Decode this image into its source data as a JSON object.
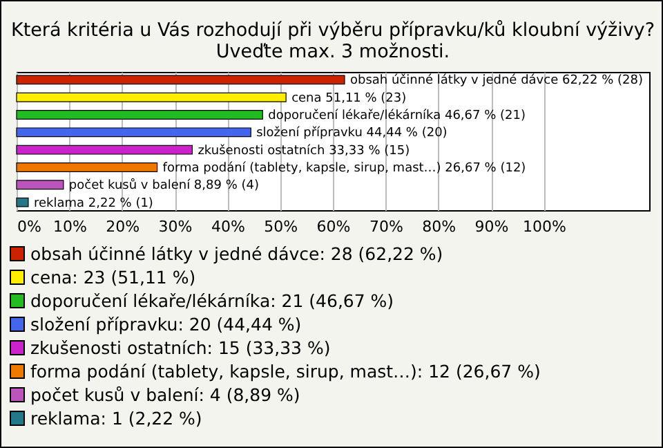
{
  "chart_data": {
    "type": "bar",
    "orientation": "horizontal",
    "title": "Která kritéria u Vás rozhodují při výběru přípravku/ků kloubní výživy?",
    "subtitle": "Uveďte max. 3 možnosti.",
    "categories": [
      null,
      null,
      null,
      null,
      null,
      null,
      null,
      null
    ],
    "values": [
      62.22,
      51.11,
      46.67,
      44.44,
      33.33,
      26.67,
      8.89,
      2.22
    ],
    "colors": [
      "#cc2200",
      "#ffee00",
      "#22bb22",
      "#4466ee",
      "#cc22cc",
      "#ee7700",
      "#bb55bb",
      "#227788"
    ],
    "value_labels": [
      "obsah účinné látky v jedné dávce 62,22 % (28)",
      "cena 51,11 % (23)",
      "doporučení lékaře/lékárníka 46,67 % (21)",
      "složení přípravku 44,44 % (20)",
      "zkušenosti ostatních 33,33 % (15)",
      "forma podání (tablety, kapsle, sirup, mast…) 26,67 % (12)",
      "počet kusů v balení 8,89 % (4)",
      "reklama 2,22 % (1)"
    ],
    "annotations": [
      "obsah účinné látky v jedné dávce: 28 (62,22 %)",
      "cena: 23 (51,11 %)",
      "doporučení lékaře/lékárníka: 21 (46,67 %)",
      "složení přípravku: 20 (44,44 %)",
      "zkušenosti ostatních: 15 (33,33 %)",
      "forma podání (tablety, kapsle, sirup, mast…): 12 (26,67 %)",
      "počet kusů v balení: 4 (8,89 %)",
      "reklama: 1 (2,22 %)"
    ],
    "xlim": [
      0,
      120
    ],
    "xticks": [
      {
        "value": 0,
        "label": "0%"
      },
      {
        "value": 10,
        "label": "10%"
      },
      {
        "value": 20,
        "label": "20%"
      },
      {
        "value": 30,
        "label": "30%"
      },
      {
        "value": 40,
        "label": "40%"
      },
      {
        "value": 50,
        "label": "50%"
      },
      {
        "value": 60,
        "label": "60%"
      },
      {
        "value": 70,
        "label": "70%"
      },
      {
        "value": 80,
        "label": "80%"
      },
      {
        "value": 90,
        "label": "90%"
      },
      {
        "value": 100,
        "label": "100%"
      }
    ],
    "grid": "x",
    "tick_labels": "x"
  }
}
